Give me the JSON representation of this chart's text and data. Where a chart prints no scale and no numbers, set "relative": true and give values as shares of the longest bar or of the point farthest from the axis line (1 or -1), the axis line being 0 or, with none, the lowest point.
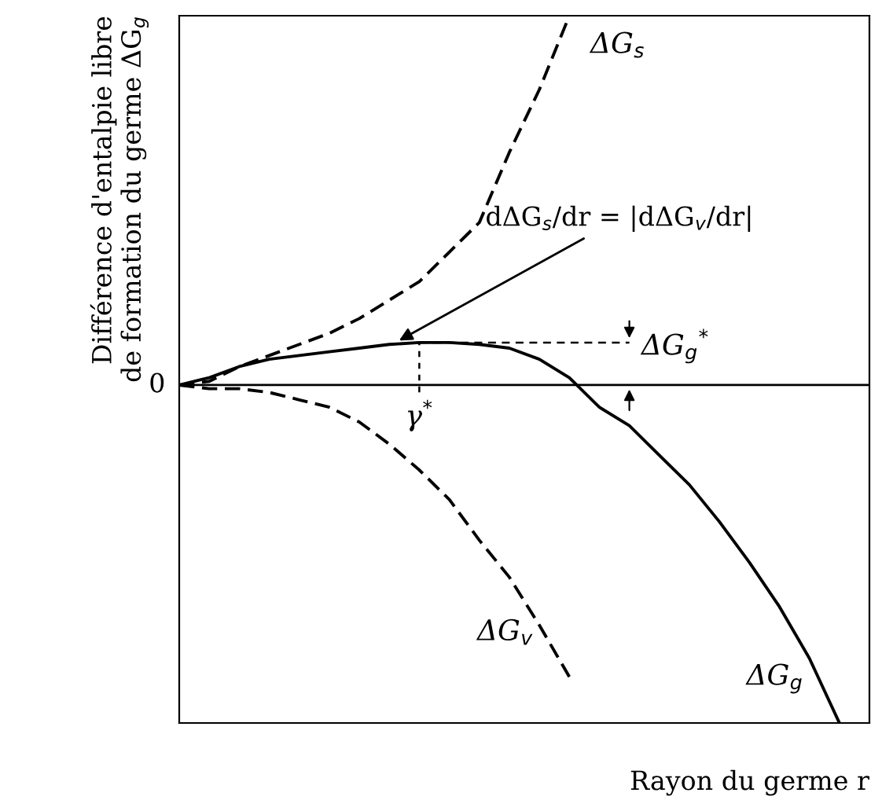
{
  "chart_data": {
    "type": "line",
    "relative": true,
    "xlabel": "Rayon du germe r",
    "ylabel": "Différence d'entalpie libre\nde formation du germe ΔG$_{g}$",
    "categories": [
      null,
      null,
      null,
      null,
      null,
      null,
      null,
      null,
      null,
      null,
      null,
      null,
      null,
      null,
      null,
      null,
      null,
      null,
      null,
      null,
      null,
      null,
      null,
      null
    ],
    "series": [
      {
        "name": "ΔG$_{s}$",
        "color": "#000000",
        "line_style": "dashed",
        "values": [
          0,
          0.01,
          0.05,
          0.08,
          0.11,
          0.14,
          0.18,
          0.23,
          0.28,
          0.36,
          0.44,
          0.63,
          0.8,
          1.0,
          null,
          null,
          null,
          null,
          null,
          null,
          null,
          null,
          null,
          null
        ]
      },
      {
        "name": "ΔG$_{v}$",
        "color": "#000000",
        "line_style": "dashed",
        "values": [
          0,
          -0.01,
          -0.01,
          -0.02,
          -0.04,
          -0.06,
          -0.1,
          -0.16,
          -0.23,
          -0.31,
          -0.42,
          -0.52,
          -0.65,
          -0.79,
          null,
          null,
          null,
          null,
          null,
          null,
          null,
          null,
          null,
          null
        ]
      },
      {
        "name": "ΔG$_{g}$",
        "color": "#000000",
        "line_style": "solid",
        "values": [
          0,
          0.02,
          0.05,
          0.07,
          0.08,
          0.09,
          0.1,
          0.11,
          0.115,
          0.115,
          0.11,
          0.1,
          0.07,
          0.02,
          -0.06,
          -0.11,
          -0.19,
          -0.27,
          -0.37,
          -0.48,
          -0.6,
          -0.74,
          -0.915,
          null
        ]
      }
    ],
    "annotations": [
      "0",
      "dΔG$_{s}$/dr = |dΔG$_{v}$/dr|",
      "γ$^{*}$",
      "ΔG$_{g}$$^{*}$"
    ],
    "legend": false,
    "grid": false
  }
}
